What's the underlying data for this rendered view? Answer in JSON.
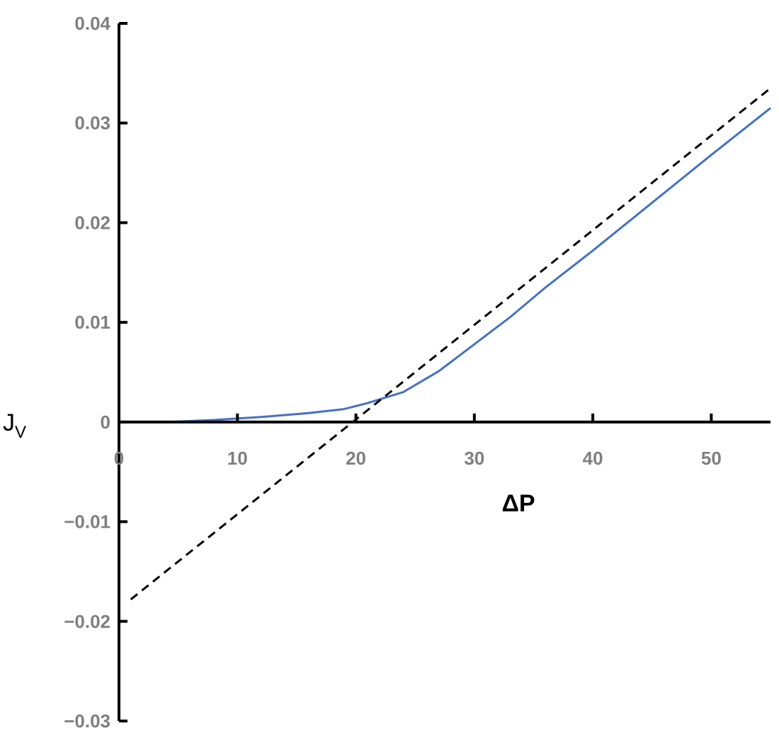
{
  "chart_data": {
    "type": "line",
    "xlabel": "ΔP",
    "ylabel": "J",
    "ylabel_subscript": "V",
    "xlim": [
      0,
      55
    ],
    "ylim": [
      -0.03,
      0.04
    ],
    "x_ticks": [
      0,
      10,
      20,
      30,
      40,
      50
    ],
    "x_tick_labels": [
      "0",
      "10",
      "20",
      "30",
      "40",
      "50"
    ],
    "y_ticks": [
      -0.03,
      -0.02,
      -0.01,
      0,
      0.01,
      0.02,
      0.03,
      0.04
    ],
    "y_tick_labels": [
      "−0.03",
      "−0.02",
      "−0.01",
      "0",
      "0.01",
      "0.02",
      "0.03",
      "0.04"
    ],
    "grid": false,
    "series": [
      {
        "color": "#4472c4",
        "style": "solid",
        "x": [
          4,
          8,
          12,
          16,
          19,
          21,
          24,
          27,
          30,
          33,
          36,
          40,
          45,
          50,
          55
        ],
        "y": [
          0,
          0.0002,
          0.0005,
          0.0009,
          0.0013,
          0.0019,
          0.003,
          0.0051,
          0.0078,
          0.0105,
          0.0135,
          0.0172,
          0.022,
          0.0268,
          0.0315
        ]
      },
      {
        "color": "#000000",
        "style": "dashed",
        "x": [
          1,
          55
        ],
        "y": [
          -0.0178,
          0.0335
        ]
      }
    ]
  }
}
